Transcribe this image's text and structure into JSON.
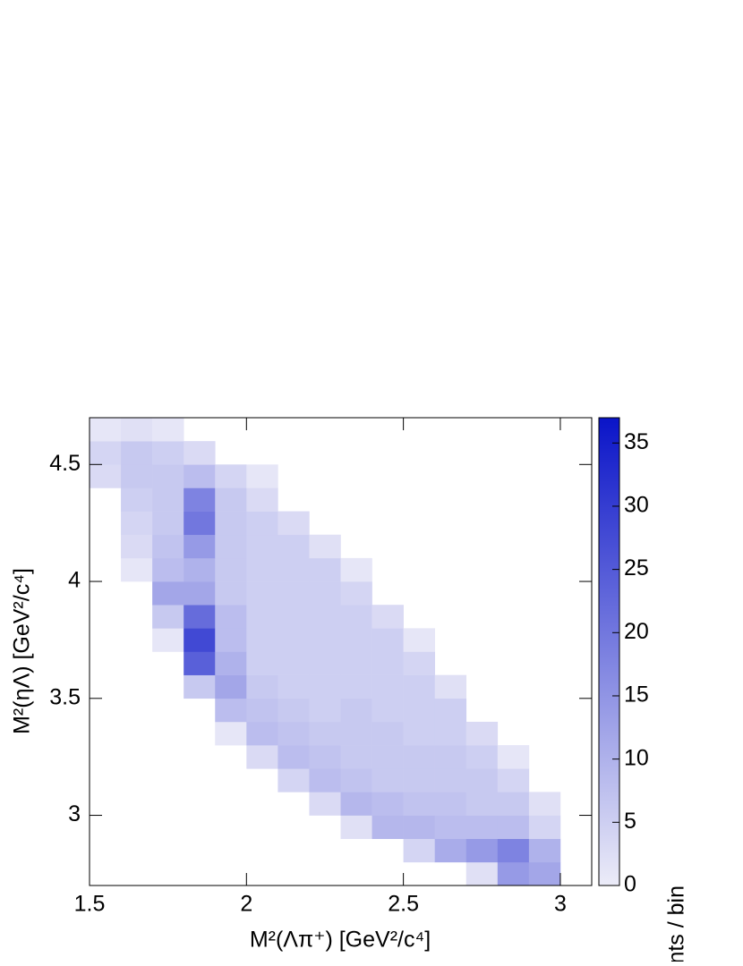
{
  "chart_data": {
    "type": "heatmap",
    "x_label": "M²(Λπ⁺) [GeV²/c⁴]",
    "y_label": "M²(ηΛ) [GeV²/c⁴]",
    "z_label": "Events / bin",
    "xlim": [
      1.5,
      3.1
    ],
    "xticks": [
      1.5,
      2,
      2.5,
      3
    ],
    "ylim": [
      2.7,
      4.7
    ],
    "yticks": [
      3,
      3.5,
      4,
      4.5
    ],
    "zlim": [
      0,
      37
    ],
    "zticks": [
      0,
      5,
      10,
      15,
      20,
      25,
      30,
      35
    ],
    "xbins": [
      1.5,
      1.6,
      1.7,
      1.8,
      1.9,
      2.0,
      2.1,
      2.2,
      2.3,
      2.4,
      2.5,
      2.6,
      2.7,
      2.8,
      2.9,
      3.0,
      3.1
    ],
    "ybins": [
      2.7,
      2.8,
      2.9,
      3.0,
      3.1,
      3.2,
      3.3,
      3.4,
      3.5,
      3.6,
      3.7,
      3.8,
      3.9,
      4.0,
      4.1,
      4.2,
      4.3,
      4.4,
      4.5,
      4.6,
      4.7
    ],
    "z": [
      [
        0,
        0,
        0,
        0,
        0,
        0,
        0,
        0,
        0,
        0,
        0,
        0,
        2,
        14,
        12,
        0
      ],
      [
        0,
        0,
        0,
        0,
        0,
        0,
        0,
        0,
        0,
        0,
        4,
        11,
        14,
        18,
        10,
        0
      ],
      [
        0,
        0,
        0,
        0,
        0,
        0,
        0,
        0,
        2,
        9,
        9,
        8,
        8,
        8,
        4,
        0
      ],
      [
        0,
        0,
        0,
        0,
        0,
        0,
        0,
        3,
        9,
        8,
        7,
        7,
        6,
        6,
        2,
        0
      ],
      [
        0,
        0,
        0,
        0,
        0,
        0,
        4,
        8,
        7,
        6,
        6,
        6,
        6,
        4,
        0,
        0
      ],
      [
        0,
        0,
        0,
        0,
        0,
        3,
        8,
        7,
        6,
        6,
        6,
        6,
        5,
        1,
        0,
        0
      ],
      [
        0,
        0,
        0,
        0,
        1,
        8,
        7,
        6,
        6,
        6,
        5,
        5,
        3,
        0,
        0,
        0
      ],
      [
        0,
        0,
        0,
        0,
        8,
        7,
        6,
        5,
        6,
        5,
        5,
        5,
        0,
        0,
        0,
        0
      ],
      [
        0,
        0,
        0,
        6,
        12,
        6,
        5,
        5,
        5,
        5,
        5,
        2,
        0,
        0,
        0,
        0
      ],
      [
        0,
        0,
        0,
        24,
        10,
        5,
        5,
        5,
        5,
        5,
        4,
        0,
        0,
        0,
        0,
        0
      ],
      [
        0,
        0,
        1,
        28,
        8,
        5,
        5,
        5,
        5,
        5,
        1,
        0,
        0,
        0,
        0,
        0
      ],
      [
        0,
        0,
        6,
        22,
        8,
        5,
        5,
        5,
        5,
        3,
        0,
        0,
        0,
        0,
        0,
        0
      ],
      [
        0,
        0,
        12,
        12,
        6,
        5,
        5,
        5,
        4,
        0,
        0,
        0,
        0,
        0,
        0,
        0
      ],
      [
        0,
        1,
        8,
        10,
        6,
        5,
        5,
        5,
        1,
        0,
        0,
        0,
        0,
        0,
        0,
        0
      ],
      [
        0,
        3,
        7,
        14,
        6,
        5,
        5,
        2,
        0,
        0,
        0,
        0,
        0,
        0,
        0,
        0
      ],
      [
        0,
        4,
        6,
        20,
        6,
        5,
        3,
        0,
        0,
        0,
        0,
        0,
        0,
        0,
        0,
        0
      ],
      [
        0,
        5,
        6,
        18,
        6,
        3,
        0,
        0,
        0,
        0,
        0,
        0,
        0,
        0,
        0,
        0
      ],
      [
        3,
        6,
        6,
        8,
        4,
        1,
        0,
        0,
        0,
        0,
        0,
        0,
        0,
        0,
        0,
        0
      ],
      [
        4,
        6,
        5,
        3,
        0,
        0,
        0,
        0,
        0,
        0,
        0,
        0,
        0,
        0,
        0,
        0
      ],
      [
        1,
        2,
        1,
        0,
        0,
        0,
        0,
        0,
        0,
        0,
        0,
        0,
        0,
        0,
        0,
        0
      ]
    ]
  }
}
